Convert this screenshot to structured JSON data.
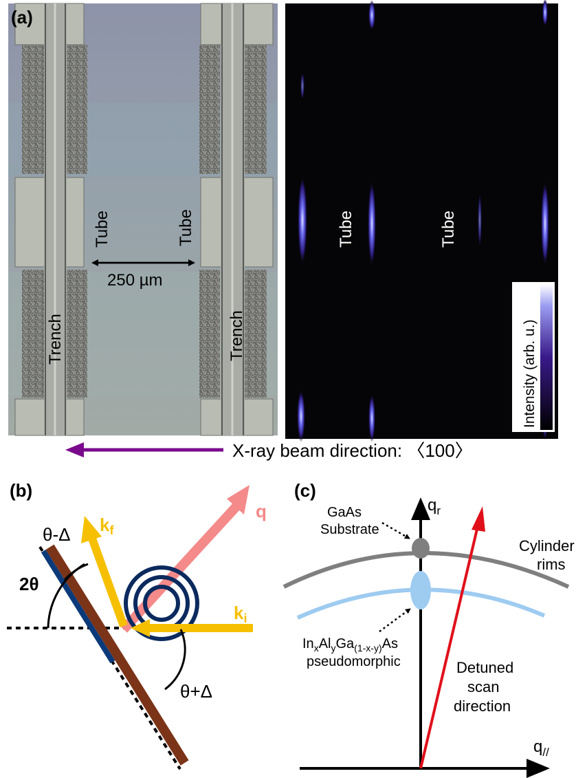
{
  "panel_a": {
    "label": "(a)",
    "micrograph": {
      "tube_left": "Tube",
      "tube_right": "Tube",
      "distance": "250 µm",
      "trench_left": "Trench",
      "trench_right": "Trench"
    },
    "xray_map": {
      "tube_left": "Tube",
      "tube_right": "Tube",
      "colorbar_label": "Intensity (arb. u.)"
    },
    "beam_direction": "X-ray beam direction: 〈100〉",
    "beam_color": "#7a0a8c"
  },
  "panel_b": {
    "label": "(b)",
    "kf": {
      "k": "k",
      "sub": "f"
    },
    "ki": {
      "k": "k",
      "sub": "i"
    },
    "q": "q",
    "theta_minus_delta": "θ-Δ",
    "two_theta": "2θ",
    "theta_plus_delta": "θ+Δ",
    "colors": {
      "k_vectors": "#f6c000",
      "q_vector": "#f48a8a",
      "coil": "#0b2a5e",
      "substrate": "#7b3418",
      "layer": "#0b3a7a"
    }
  },
  "panel_c": {
    "label": "(c)",
    "qr": {
      "q": "q",
      "sub": "r"
    },
    "qpar": {
      "q": "q",
      "sub": "//"
    },
    "gaas_line1": "GaAs",
    "gaas_line2": "Substrate",
    "cylinder_line1": "Cylinder",
    "cylinder_line2": "rims",
    "alloy": {
      "in": "In",
      "x": "x",
      "al": "Al",
      "y": "y",
      "ga": "Ga",
      "sub": "(1-x-y)",
      "as": "As"
    },
    "pseudomorphic": "pseudomorphic",
    "detuned_line1": "Detuned",
    "detuned_line2": "scan",
    "detuned_line3": "direction",
    "colors": {
      "substrate_arc": "#7f7f7f",
      "layer_arc": "#9ecbf0",
      "scan": "#e0101a"
    }
  }
}
